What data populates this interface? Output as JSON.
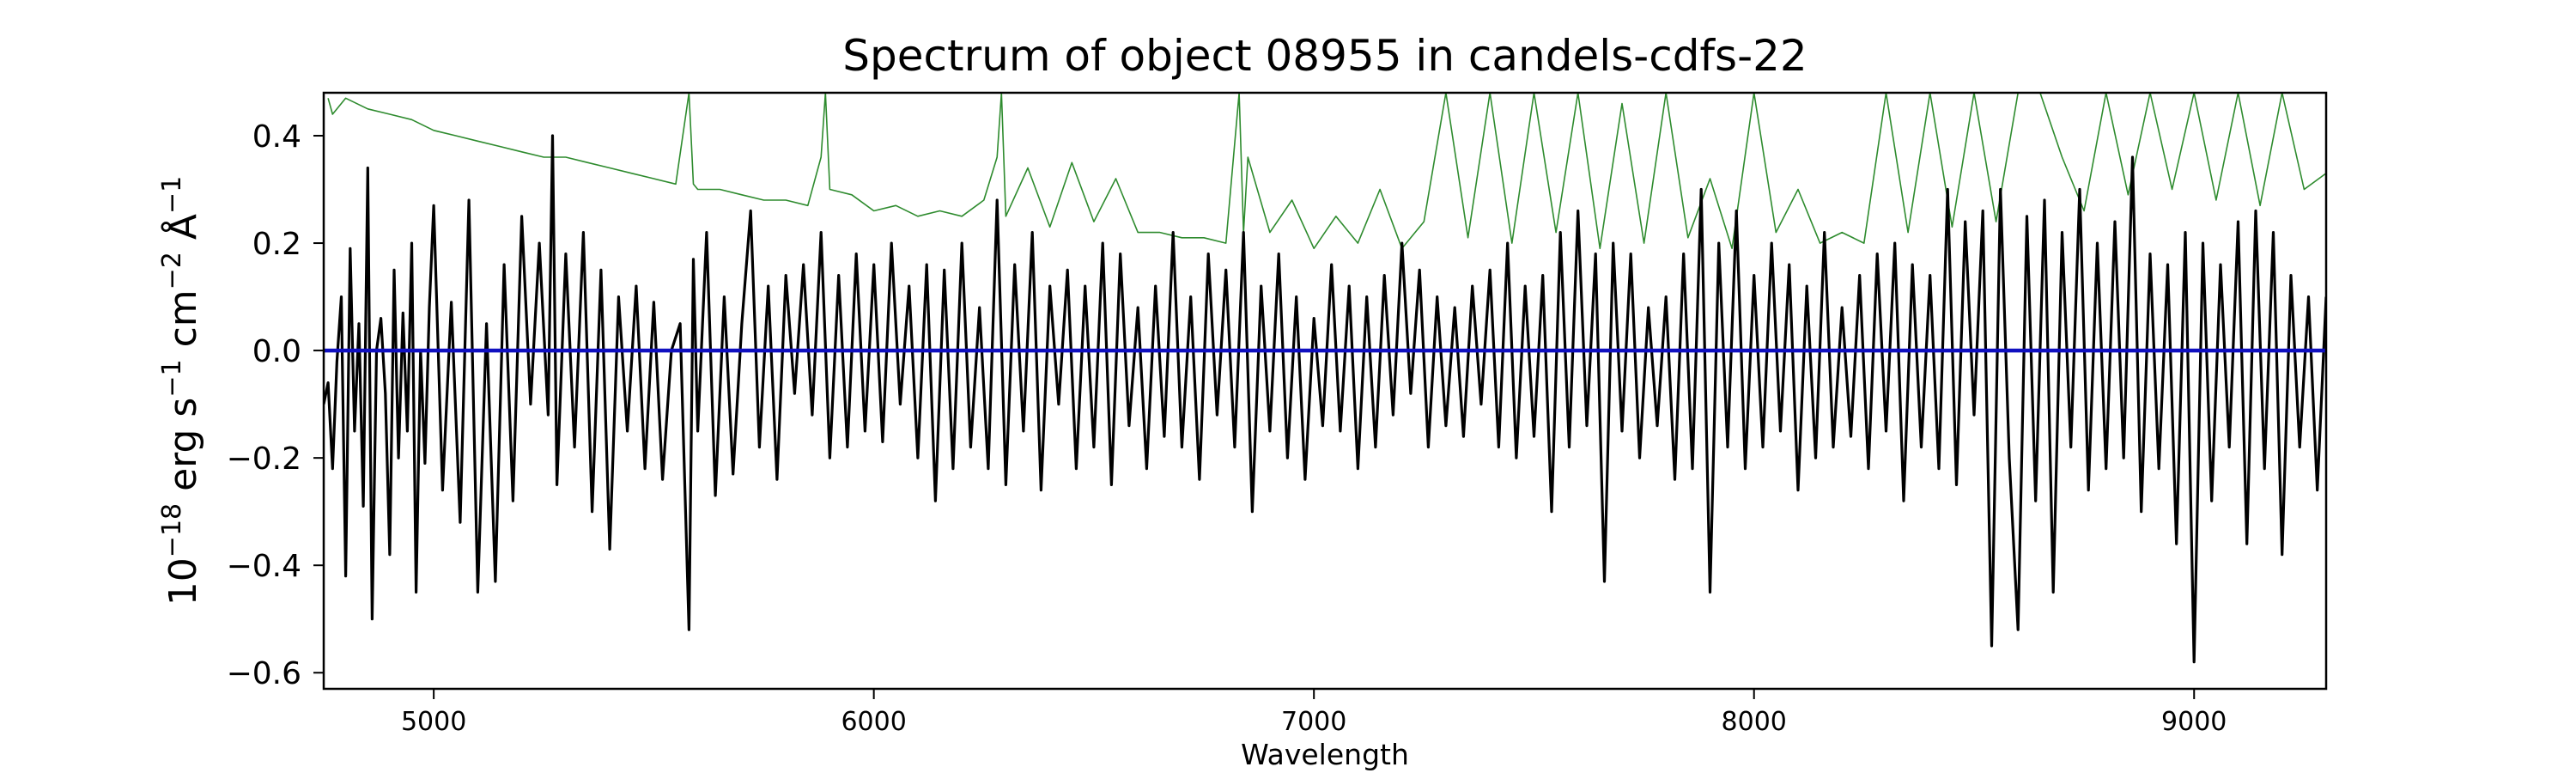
{
  "chart_data": {
    "type": "line",
    "title": "Spectrum of object 08955 in candels-cdfs-22",
    "xlabel": "Wavelength",
    "ylabel": {
      "base": "10",
      "exp1": "−18",
      "unit1": " erg s",
      "exp2": "−1",
      "unit2": " cm",
      "exp3": "−2",
      "unit3": " Å",
      "exp4": "−1"
    },
    "xlim": [
      4750,
      9300
    ],
    "ylim": [
      -0.63,
      0.48
    ],
    "xticks": [
      5000,
      6000,
      7000,
      8000,
      9000
    ],
    "xtick_labels": [
      "5000",
      "6000",
      "7000",
      "8000",
      "9000"
    ],
    "yticks": [
      -0.6,
      -0.4,
      -0.2,
      0.0,
      0.2,
      0.4
    ],
    "ytick_labels": [
      "−0.6",
      "−0.4",
      "−0.2",
      "0.0",
      "0.2",
      "0.4"
    ],
    "grid": false,
    "legend": "none",
    "series": [
      {
        "color": "#2e8b2e",
        "style": "thin",
        "x": [
          4760,
          4770,
          4800,
          4850,
          4900,
          4950,
          5000,
          5050,
          5100,
          5150,
          5200,
          5250,
          5300,
          5350,
          5400,
          5450,
          5500,
          5550,
          5580,
          5590,
          5600,
          5650,
          5700,
          5750,
          5800,
          5850,
          5880,
          5890,
          5900,
          5950,
          6000,
          6050,
          6100,
          6150,
          6200,
          6250,
          6280,
          6290,
          6300,
          6350,
          6400,
          6450,
          6500,
          6550,
          6600,
          6650,
          6700,
          6750,
          6800,
          6830,
          6840,
          6850,
          6900,
          6950,
          7000,
          7050,
          7100,
          7150,
          7200,
          7250,
          7300,
          7350,
          7400,
          7450,
          7500,
          7550,
          7600,
          7650,
          7700,
          7750,
          7800,
          7850,
          7900,
          7950,
          8000,
          8050,
          8100,
          8150,
          8200,
          8250,
          8300,
          8350,
          8400,
          8450,
          8500,
          8550,
          8600,
          8650,
          8700,
          8750,
          8800,
          8850,
          8900,
          8950,
          9000,
          9050,
          9100,
          9150,
          9200,
          9250,
          9300
        ],
        "y": [
          0.47,
          0.44,
          0.47,
          0.45,
          0.44,
          0.43,
          0.41,
          0.4,
          0.39,
          0.38,
          0.37,
          0.36,
          0.36,
          0.35,
          0.34,
          0.33,
          0.32,
          0.31,
          0.48,
          0.31,
          0.3,
          0.3,
          0.29,
          0.28,
          0.28,
          0.27,
          0.36,
          0.48,
          0.3,
          0.29,
          0.26,
          0.27,
          0.25,
          0.26,
          0.25,
          0.28,
          0.36,
          0.48,
          0.25,
          0.34,
          0.23,
          0.35,
          0.24,
          0.32,
          0.22,
          0.22,
          0.21,
          0.21,
          0.2,
          0.48,
          0.22,
          0.36,
          0.22,
          0.28,
          0.19,
          0.25,
          0.2,
          0.3,
          0.19,
          0.24,
          0.48,
          0.21,
          0.48,
          0.2,
          0.48,
          0.22,
          0.48,
          0.19,
          0.46,
          0.2,
          0.48,
          0.21,
          0.32,
          0.19,
          0.48,
          0.22,
          0.3,
          0.2,
          0.22,
          0.2,
          0.48,
          0.22,
          0.48,
          0.23,
          0.48,
          0.24,
          0.48,
          0.48,
          0.36,
          0.26,
          0.48,
          0.29,
          0.48,
          0.3,
          0.48,
          0.28,
          0.48,
          0.27,
          0.48,
          0.3,
          0.33
        ]
      },
      {
        "color": "#000000",
        "style": "noisy-flux",
        "x": [
          4750,
          4760,
          4770,
          4780,
          4790,
          4800,
          4810,
          4820,
          4830,
          4840,
          4850,
          4860,
          4870,
          4880,
          4890,
          4900,
          4910,
          4920,
          4930,
          4940,
          4950,
          4960,
          4970,
          4980,
          4990,
          5000,
          5020,
          5040,
          5060,
          5080,
          5100,
          5120,
          5140,
          5160,
          5180,
          5200,
          5220,
          5240,
          5260,
          5270,
          5280,
          5300,
          5320,
          5340,
          5360,
          5380,
          5400,
          5420,
          5440,
          5460,
          5480,
          5500,
          5520,
          5540,
          5560,
          5580,
          5590,
          5600,
          5620,
          5640,
          5660,
          5680,
          5700,
          5720,
          5740,
          5760,
          5780,
          5800,
          5820,
          5840,
          5860,
          5880,
          5900,
          5920,
          5940,
          5960,
          5980,
          6000,
          6020,
          6040,
          6060,
          6080,
          6100,
          6120,
          6140,
          6160,
          6180,
          6200,
          6220,
          6240,
          6260,
          6280,
          6300,
          6320,
          6340,
          6360,
          6380,
          6400,
          6420,
          6440,
          6460,
          6480,
          6500,
          6520,
          6540,
          6560,
          6580,
          6600,
          6620,
          6640,
          6660,
          6680,
          6700,
          6720,
          6740,
          6760,
          6780,
          6800,
          6820,
          6840,
          6860,
          6880,
          6900,
          6920,
          6940,
          6960,
          6980,
          7000,
          7020,
          7040,
          7060,
          7080,
          7100,
          7120,
          7140,
          7160,
          7180,
          7200,
          7220,
          7240,
          7260,
          7280,
          7300,
          7320,
          7340,
          7360,
          7380,
          7400,
          7420,
          7440,
          7460,
          7480,
          7500,
          7520,
          7540,
          7560,
          7580,
          7600,
          7620,
          7640,
          7660,
          7680,
          7700,
          7720,
          7740,
          7760,
          7780,
          7800,
          7820,
          7840,
          7860,
          7880,
          7900,
          7920,
          7940,
          7960,
          7980,
          8000,
          8020,
          8040,
          8060,
          8080,
          8100,
          8120,
          8140,
          8160,
          8180,
          8200,
          8220,
          8240,
          8260,
          8280,
          8300,
          8320,
          8340,
          8360,
          8380,
          8400,
          8420,
          8440,
          8460,
          8480,
          8500,
          8520,
          8540,
          8560,
          8580,
          8600,
          8620,
          8640,
          8660,
          8680,
          8700,
          8720,
          8740,
          8760,
          8780,
          8800,
          8820,
          8840,
          8860,
          8880,
          8900,
          8920,
          8940,
          8960,
          8980,
          9000,
          9020,
          9040,
          9060,
          9080,
          9100,
          9120,
          9140,
          9160,
          9180,
          9200,
          9220,
          9240,
          9260,
          9280,
          9300
        ],
        "y": [
          -0.1,
          -0.06,
          -0.22,
          -0.02,
          0.1,
          -0.42,
          0.19,
          -0.15,
          0.05,
          -0.29,
          0.34,
          -0.5,
          0.0,
          0.06,
          -0.08,
          -0.38,
          0.15,
          -0.2,
          0.07,
          -0.15,
          0.2,
          -0.45,
          0.0,
          -0.21,
          0.08,
          0.27,
          -0.26,
          0.09,
          -0.32,
          0.28,
          -0.45,
          0.05,
          -0.43,
          0.16,
          -0.28,
          0.25,
          -0.1,
          0.2,
          -0.12,
          0.4,
          -0.25,
          0.18,
          -0.18,
          0.22,
          -0.3,
          0.15,
          -0.37,
          0.1,
          -0.15,
          0.12,
          -0.22,
          0.09,
          -0.24,
          0.0,
          0.05,
          -0.52,
          0.17,
          -0.15,
          0.22,
          -0.27,
          0.1,
          -0.23,
          0.05,
          0.26,
          -0.18,
          0.12,
          -0.24,
          0.14,
          -0.08,
          0.16,
          -0.12,
          0.22,
          -0.2,
          0.14,
          -0.18,
          0.18,
          -0.15,
          0.16,
          -0.17,
          0.2,
          -0.1,
          0.12,
          -0.2,
          0.16,
          -0.28,
          0.15,
          -0.22,
          0.2,
          -0.18,
          0.08,
          -0.22,
          0.28,
          -0.25,
          0.16,
          -0.15,
          0.22,
          -0.26,
          0.12,
          -0.1,
          0.15,
          -0.22,
          0.12,
          -0.18,
          0.2,
          -0.25,
          0.18,
          -0.14,
          0.08,
          -0.22,
          0.12,
          -0.16,
          0.22,
          -0.18,
          0.1,
          -0.24,
          0.18,
          -0.12,
          0.15,
          -0.18,
          0.22,
          -0.3,
          0.12,
          -0.15,
          0.18,
          -0.2,
          0.1,
          -0.24,
          0.06,
          -0.14,
          0.16,
          -0.15,
          0.12,
          -0.22,
          0.1,
          -0.18,
          0.14,
          -0.12,
          0.2,
          -0.08,
          0.15,
          -0.18,
          0.1,
          -0.14,
          0.08,
          -0.16,
          0.12,
          -0.1,
          0.15,
          -0.18,
          0.2,
          -0.2,
          0.12,
          -0.16,
          0.14,
          -0.3,
          0.22,
          -0.18,
          0.26,
          -0.14,
          0.18,
          -0.43,
          0.2,
          -0.15,
          0.18,
          -0.2,
          0.08,
          -0.14,
          0.1,
          -0.24,
          0.18,
          -0.22,
          0.3,
          -0.45,
          0.2,
          -0.18,
          0.26,
          -0.22,
          0.14,
          -0.18,
          0.2,
          -0.15,
          0.16,
          -0.26,
          0.12,
          -0.2,
          0.22,
          -0.18,
          0.08,
          -0.16,
          0.14,
          -0.22,
          0.18,
          -0.15,
          0.2,
          -0.28,
          0.16,
          -0.18,
          0.14,
          -0.22,
          0.3,
          -0.25,
          0.24,
          -0.12,
          0.26,
          -0.55,
          0.3,
          -0.2,
          -0.52,
          0.25,
          -0.28,
          0.28,
          -0.45,
          0.22,
          -0.18,
          0.3,
          -0.26,
          0.2,
          -0.22,
          0.24,
          -0.2,
          0.36,
          -0.3,
          0.18,
          -0.22,
          0.16,
          -0.36,
          0.22,
          -0.58,
          0.2,
          -0.28,
          0.16,
          -0.18,
          0.24,
          -0.36,
          0.26,
          -0.22,
          0.22,
          -0.38,
          0.14,
          -0.18,
          0.1,
          -0.26,
          0.1
        ]
      },
      {
        "color": "#1010c0",
        "style": "baseline",
        "x": [
          4750,
          9300
        ],
        "y": [
          0.0,
          0.0
        ]
      }
    ]
  }
}
